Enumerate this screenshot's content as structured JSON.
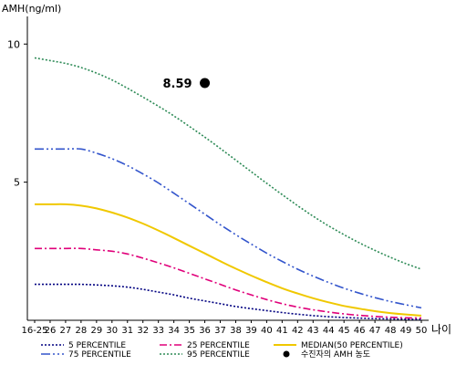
{
  "chart_data": {
    "type": "line",
    "y_axis_title": "AMH(ng/ml)",
    "x_axis_title": "나이",
    "ylim": [
      0,
      11
    ],
    "y_ticks": [
      5,
      10
    ],
    "grid": false,
    "categories": [
      "16-25",
      "26",
      "27",
      "28",
      "29",
      "30",
      "31",
      "32",
      "33",
      "34",
      "35",
      "36",
      "37",
      "38",
      "39",
      "40",
      "41",
      "42",
      "43",
      "44",
      "45",
      "46",
      "47",
      "48",
      "49",
      "50"
    ],
    "series": [
      {
        "name": "5 PERCENTILE",
        "color": "#000080",
        "dash": "2,2",
        "values": [
          1.3,
          1.3,
          1.3,
          1.3,
          1.28,
          1.25,
          1.2,
          1.12,
          1.02,
          0.92,
          0.8,
          0.7,
          0.6,
          0.5,
          0.42,
          0.35,
          0.28,
          0.22,
          0.17,
          0.13,
          0.1,
          0.08,
          0.06,
          0.05,
          0.04,
          0.03
        ]
      },
      {
        "name": "25 PERCENTILE",
        "color": "#e0007a",
        "dash": "8,3,2,3",
        "values": [
          2.6,
          2.6,
          2.6,
          2.6,
          2.55,
          2.5,
          2.4,
          2.25,
          2.08,
          1.9,
          1.7,
          1.5,
          1.3,
          1.1,
          0.92,
          0.75,
          0.6,
          0.48,
          0.38,
          0.3,
          0.23,
          0.18,
          0.14,
          0.11,
          0.09,
          0.08
        ]
      },
      {
        "name": "MEDIAN(50 PERCENTILE)",
        "color": "#f0c800",
        "dash": "",
        "values": [
          4.2,
          4.2,
          4.2,
          4.15,
          4.05,
          3.9,
          3.72,
          3.5,
          3.25,
          2.98,
          2.7,
          2.42,
          2.14,
          1.87,
          1.62,
          1.38,
          1.16,
          0.97,
          0.8,
          0.65,
          0.52,
          0.42,
          0.33,
          0.26,
          0.21,
          0.17
        ]
      },
      {
        "name": "75 PERCENTILE",
        "color": "#3355cc",
        "dash": "10,3,2,3,2,3",
        "values": [
          6.2,
          6.2,
          6.2,
          6.2,
          6.05,
          5.85,
          5.6,
          5.3,
          4.97,
          4.6,
          4.22,
          3.84,
          3.46,
          3.1,
          2.76,
          2.43,
          2.13,
          1.85,
          1.6,
          1.37,
          1.16,
          0.98,
          0.82,
          0.68,
          0.56,
          0.45
        ]
      },
      {
        "name": "95 PERCENTILE",
        "color": "#2e8b57",
        "dash": "2,2",
        "values": [
          9.5,
          9.4,
          9.3,
          9.15,
          8.95,
          8.7,
          8.4,
          8.08,
          7.75,
          7.4,
          7.02,
          6.63,
          6.22,
          5.8,
          5.38,
          4.96,
          4.55,
          4.15,
          3.77,
          3.42,
          3.1,
          2.8,
          2.53,
          2.28,
          2.05,
          1.85
        ]
      }
    ],
    "patient_point": {
      "category": "36",
      "value": 8.59,
      "label": "8.59",
      "legend": "수진자의 AMH 농도",
      "color": "#000000"
    }
  }
}
